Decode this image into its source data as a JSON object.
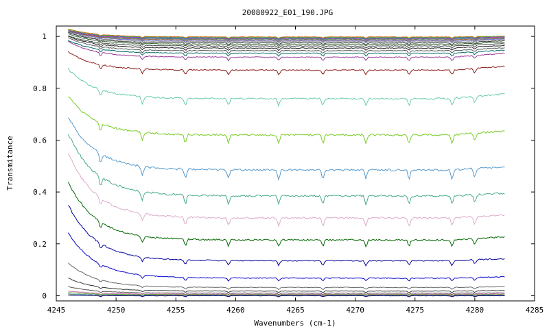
{
  "chart_data": {
    "type": "line",
    "title": "20080922_E01_190.JPG",
    "xlabel": "Wavenumbers (cm-1)",
    "ylabel": "Transmitance",
    "xlim": [
      4245,
      4285
    ],
    "ylim": [
      -0.02,
      1.04
    ],
    "xticks": [
      "4245",
      "4250",
      "4255",
      "4260",
      "4265",
      "4270",
      "4275",
      "4280",
      "4285"
    ],
    "yticks": [
      "0",
      "0.2",
      "0.4",
      "0.6",
      "0.8",
      "1"
    ],
    "grid": false,
    "x_range": [
      4246,
      4282.5
    ],
    "absorption_lines": [
      4248.7,
      4252.2,
      4255.8,
      4259.4,
      4263.6,
      4267.3,
      4270.9,
      4274.5,
      4278.1,
      4280.0
    ],
    "series": [
      {
        "baseline": 0.998,
        "start_rise": 0.03,
        "end_rise": 0.003,
        "color": "#cc6600"
      },
      {
        "baseline": 0.996,
        "start_rise": 0.03,
        "end_rise": 0.004,
        "color": "#66aa33"
      },
      {
        "baseline": 0.994,
        "start_rise": 0.03,
        "end_rise": 0.004,
        "color": "#3366cc"
      },
      {
        "baseline": 0.992,
        "start_rise": 0.03,
        "end_rise": 0.005,
        "color": "#cc3399"
      },
      {
        "baseline": 0.99,
        "start_rise": 0.03,
        "end_rise": 0.005,
        "color": "#339999"
      },
      {
        "baseline": 0.987,
        "start_rise": 0.035,
        "end_rise": 0.006,
        "color": "#996633"
      },
      {
        "baseline": 0.984,
        "start_rise": 0.035,
        "end_rise": 0.006,
        "color": "#6666cc"
      },
      {
        "baseline": 0.98,
        "start_rise": 0.035,
        "end_rise": 0.007,
        "color": "#999999"
      },
      {
        "baseline": 0.975,
        "start_rise": 0.04,
        "end_rise": 0.008,
        "color": "#333333"
      },
      {
        "baseline": 0.97,
        "start_rise": 0.04,
        "end_rise": 0.008,
        "color": "#336633"
      },
      {
        "baseline": 0.963,
        "start_rise": 0.04,
        "end_rise": 0.009,
        "color": "#444444"
      },
      {
        "baseline": 0.955,
        "start_rise": 0.045,
        "end_rise": 0.01,
        "color": "#222222"
      },
      {
        "baseline": 0.945,
        "start_rise": 0.05,
        "end_rise": 0.011,
        "color": "#555555"
      },
      {
        "baseline": 0.935,
        "start_rise": 0.05,
        "end_rise": 0.012,
        "color": "#006666"
      },
      {
        "baseline": 0.92,
        "start_rise": 0.06,
        "end_rise": 0.015,
        "color": "#993399"
      },
      {
        "baseline": 0.87,
        "start_rise": 0.07,
        "end_rise": 0.015,
        "color": "#8b1a1a"
      },
      {
        "baseline": 0.76,
        "start_rise": 0.115,
        "end_rise": 0.018,
        "color": "#66ccaa"
      },
      {
        "baseline": 0.62,
        "start_rise": 0.15,
        "end_rise": 0.015,
        "color": "#77cc22"
      },
      {
        "baseline": 0.485,
        "start_rise": 0.205,
        "end_rise": 0.012,
        "color": "#5599cc"
      },
      {
        "baseline": 0.385,
        "start_rise": 0.24,
        "end_rise": 0.01,
        "color": "#44aa88"
      },
      {
        "baseline": 0.3,
        "start_rise": 0.25,
        "end_rise": 0.01,
        "color": "#ddaacc"
      },
      {
        "baseline": 0.215,
        "start_rise": 0.225,
        "end_rise": 0.012,
        "color": "#006600"
      },
      {
        "baseline": 0.135,
        "start_rise": 0.215,
        "end_rise": 0.008,
        "color": "#000099"
      },
      {
        "baseline": 0.068,
        "start_rise": 0.175,
        "end_rise": 0.005,
        "color": "#0000cc"
      },
      {
        "baseline": 0.032,
        "start_rise": 0.095,
        "end_rise": 0.003,
        "color": "#666666"
      },
      {
        "baseline": 0.018,
        "start_rise": 0.05,
        "end_rise": 0.002,
        "color": "#333333"
      },
      {
        "baseline": 0.01,
        "start_rise": 0.025,
        "end_rise": 0.001,
        "color": "#555555"
      },
      {
        "baseline": 0.006,
        "start_rise": 0.012,
        "end_rise": 0.001,
        "color": "#cc66aa"
      },
      {
        "baseline": 0.004,
        "start_rise": 0.008,
        "end_rise": 0.0,
        "color": "#66aa33"
      },
      {
        "baseline": 0.002,
        "start_rise": 0.005,
        "end_rise": 0.0,
        "color": "#3399cc"
      },
      {
        "baseline": 0.001,
        "start_rise": 0.003,
        "end_rise": 0.0,
        "color": "#cc9933"
      },
      {
        "baseline": 0.0,
        "start_rise": 0.002,
        "end_rise": 0.0,
        "color": "#000080"
      }
    ]
  }
}
